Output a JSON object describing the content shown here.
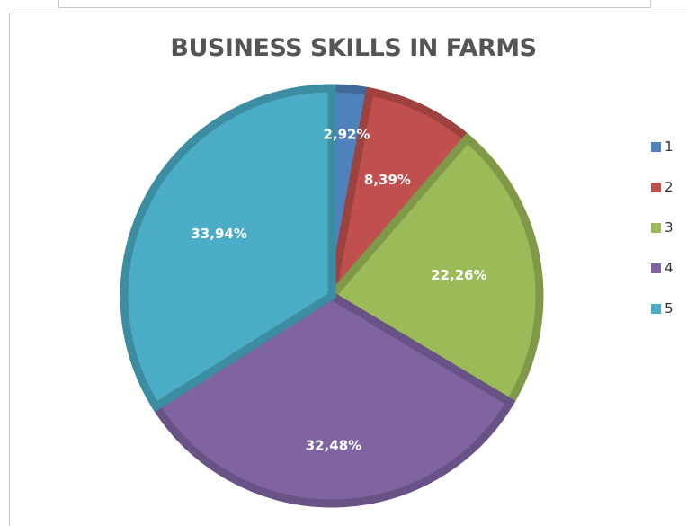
{
  "chart_data": {
    "type": "pie",
    "title": "BUSINESS SKILLS IN FARMS",
    "categories": [
      "1",
      "2",
      "3",
      "4",
      "5"
    ],
    "values": [
      2.92,
      8.39,
      22.26,
      32.48,
      33.94
    ],
    "labels": [
      "2,92%",
      "8,39%",
      "22,26%",
      "32,48%",
      "33,94%"
    ],
    "colors": [
      "#4f81bd",
      "#c0504d",
      "#9bbb59",
      "#8064a2",
      "#4bacc6"
    ],
    "legend_position": "right"
  }
}
